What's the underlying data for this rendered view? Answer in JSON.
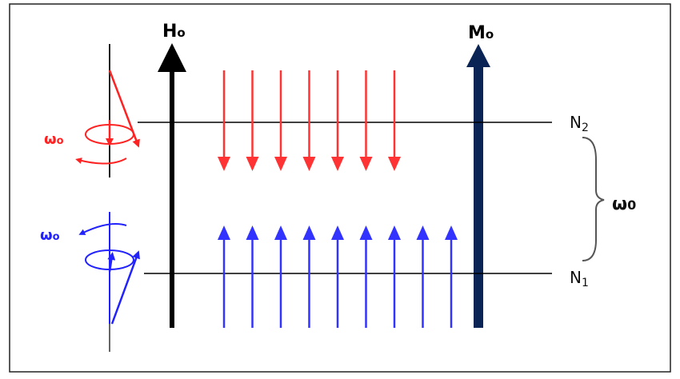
{
  "labels": {
    "field": {
      "main": "H",
      "sub": "o"
    },
    "magnetization": {
      "main": "M",
      "sub": "o"
    },
    "upper_level": {
      "main": "N",
      "sub": "2"
    },
    "lower_level": {
      "main": "N",
      "sub": "1"
    },
    "upper_precession": {
      "main": "ω",
      "sub": "o"
    },
    "lower_precession": {
      "main": "ω",
      "sub": "o"
    },
    "gap": {
      "main": "ω",
      "sub": "0"
    }
  }
}
